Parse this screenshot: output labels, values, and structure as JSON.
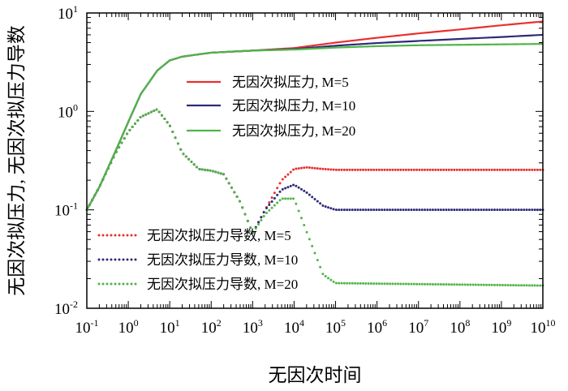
{
  "chart_data": {
    "type": "line",
    "xlabel": "无因次时间",
    "ylabel": "无因次拟压力, 无因次拟压力导数",
    "x_scale": "log",
    "y_scale": "log",
    "xlim": [
      0.1,
      10000000000
    ],
    "ylim": [
      0.01,
      10
    ],
    "x_ticks": [
      {
        "base": "10",
        "exp": "-1",
        "value": 0.1
      },
      {
        "base": "10",
        "exp": "0",
        "value": 1
      },
      {
        "base": "10",
        "exp": "1",
        "value": 10
      },
      {
        "base": "10",
        "exp": "2",
        "value": 100
      },
      {
        "base": "10",
        "exp": "3",
        "value": 1000
      },
      {
        "base": "10",
        "exp": "4",
        "value": 10000
      },
      {
        "base": "10",
        "exp": "5",
        "value": 100000
      },
      {
        "base": "10",
        "exp": "6",
        "value": 1000000
      },
      {
        "base": "10",
        "exp": "7",
        "value": 10000000
      },
      {
        "base": "10",
        "exp": "8",
        "value": 100000000
      },
      {
        "base": "10",
        "exp": "9",
        "value": 1000000000
      },
      {
        "base": "10",
        "exp": "10",
        "value": 10000000000
      }
    ],
    "y_ticks": [
      {
        "base": "10",
        "exp": "-2",
        "value": 0.01
      },
      {
        "base": "10",
        "exp": "-1",
        "value": 0.1
      },
      {
        "base": "10",
        "exp": "0",
        "value": 1
      },
      {
        "base": "10",
        "exp": "1",
        "value": 10
      }
    ],
    "grid": false,
    "legend_solid_position": "upper-right",
    "legend_dotted_position": "lower-left",
    "series": [
      {
        "name": "无因次拟压力, M=5",
        "style": "solid",
        "color": "#e8302e",
        "x": [
          0.1,
          0.2,
          0.5,
          1,
          2,
          5,
          10,
          20,
          50,
          100,
          1000,
          10000,
          100000,
          1000000,
          10000000,
          100000000,
          1000000000,
          10000000000
        ],
        "y": [
          0.1,
          0.17,
          0.4,
          0.78,
          1.5,
          2.6,
          3.3,
          3.6,
          3.8,
          3.95,
          4.15,
          4.4,
          5.0,
          5.6,
          6.2,
          6.8,
          7.5,
          8.2
        ]
      },
      {
        "name": "无因次拟压力, M=10",
        "style": "solid",
        "color": "#2e2a7a",
        "x": [
          0.1,
          0.2,
          0.5,
          1,
          2,
          5,
          10,
          20,
          50,
          100,
          1000,
          10000,
          100000,
          1000000,
          10000000,
          100000000,
          1000000000,
          10000000000
        ],
        "y": [
          0.1,
          0.17,
          0.4,
          0.78,
          1.5,
          2.6,
          3.3,
          3.6,
          3.8,
          3.95,
          4.15,
          4.3,
          4.65,
          4.95,
          5.2,
          5.45,
          5.7,
          6.0
        ]
      },
      {
        "name": "无因次拟压力, M=20",
        "style": "solid",
        "color": "#4fb548",
        "x": [
          0.1,
          0.2,
          0.5,
          1,
          2,
          5,
          10,
          20,
          50,
          100,
          1000,
          10000,
          100000,
          1000000,
          10000000,
          100000000,
          1000000000,
          10000000000
        ],
        "y": [
          0.1,
          0.17,
          0.4,
          0.78,
          1.5,
          2.6,
          3.3,
          3.6,
          3.8,
          3.95,
          4.15,
          4.25,
          4.45,
          4.6,
          4.7,
          4.75,
          4.8,
          4.85
        ]
      },
      {
        "name": "无因次拟压力导数, M=5",
        "style": "dotted",
        "color": "#e8302e",
        "x": [
          0.1,
          0.2,
          0.5,
          1,
          2,
          5,
          10,
          20,
          50,
          100,
          200,
          500,
          1000,
          2000,
          5000,
          10000,
          20000,
          50000,
          100000,
          10000000000
        ],
        "y": [
          0.1,
          0.17,
          0.38,
          0.62,
          0.88,
          1.05,
          0.72,
          0.38,
          0.26,
          0.25,
          0.23,
          0.12,
          0.058,
          0.1,
          0.2,
          0.26,
          0.27,
          0.26,
          0.255,
          0.255
        ]
      },
      {
        "name": "无因次拟压力导数, M=10",
        "style": "dotted",
        "color": "#2e2a7a",
        "x": [
          0.1,
          0.2,
          0.5,
          1,
          2,
          5,
          10,
          20,
          50,
          100,
          200,
          500,
          1000,
          2000,
          5000,
          10000,
          20000,
          50000,
          100000,
          10000000000
        ],
        "y": [
          0.1,
          0.17,
          0.38,
          0.62,
          0.88,
          1.05,
          0.72,
          0.38,
          0.26,
          0.25,
          0.23,
          0.12,
          0.058,
          0.1,
          0.16,
          0.18,
          0.15,
          0.11,
          0.1,
          0.1
        ]
      },
      {
        "name": "无因次拟压力导数, M=20",
        "style": "dotted",
        "color": "#4fb548",
        "x": [
          0.1,
          0.2,
          0.5,
          1,
          2,
          5,
          10,
          20,
          50,
          100,
          200,
          500,
          1000,
          2000,
          5000,
          10000,
          20000,
          50000,
          100000,
          10000000000
        ],
        "y": [
          0.1,
          0.17,
          0.38,
          0.62,
          0.88,
          1.05,
          0.72,
          0.38,
          0.26,
          0.25,
          0.23,
          0.12,
          0.058,
          0.09,
          0.13,
          0.13,
          0.06,
          0.022,
          0.018,
          0.017
        ]
      }
    ]
  }
}
